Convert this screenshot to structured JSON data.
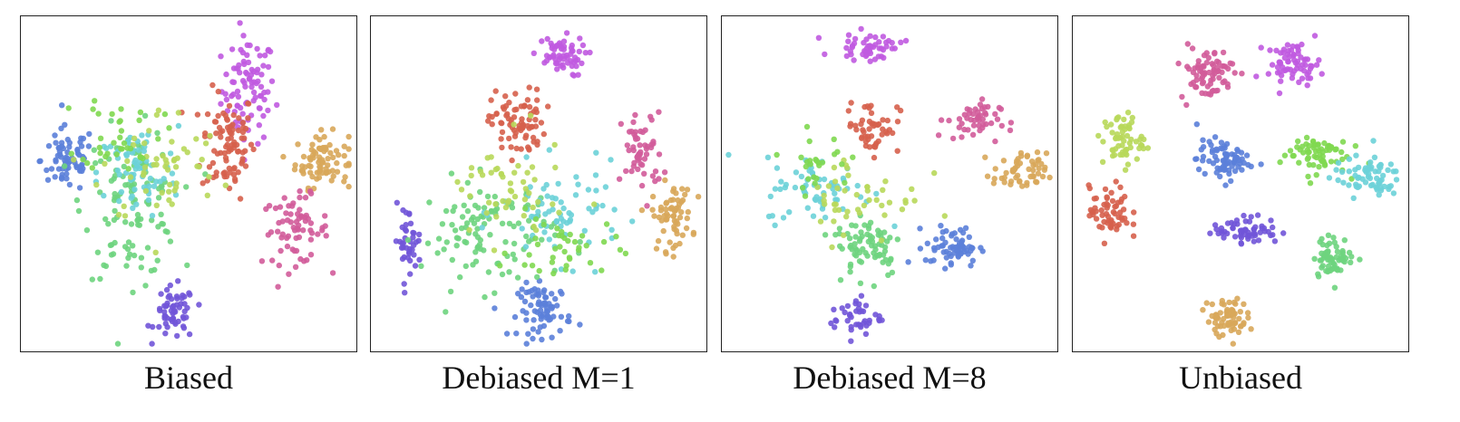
{
  "chart_data": [
    {
      "type": "scatter",
      "title": "Biased",
      "xlim": [
        0,
        100
      ],
      "ylim": [
        0,
        100
      ],
      "grid": false,
      "clusters": [
        {
          "color": "#c05ae0",
          "x": 68,
          "y": 78,
          "sx": 4,
          "sy": 8,
          "n": 90
        },
        {
          "color": "#d6604d",
          "x": 62,
          "y": 62,
          "sx": 4,
          "sy": 8,
          "n": 90
        },
        {
          "color": "#d8a75a",
          "x": 90,
          "y": 57,
          "sx": 4,
          "sy": 4,
          "n": 80
        },
        {
          "color": "#d25c9a",
          "x": 82,
          "y": 36,
          "sx": 5,
          "sy": 5,
          "n": 70
        },
        {
          "color": "#5b7fd9",
          "x": 14,
          "y": 57,
          "sx": 4,
          "sy": 5,
          "n": 70
        },
        {
          "color": "#7155d8",
          "x": 46,
          "y": 11,
          "sx": 3,
          "sy": 4,
          "n": 60
        },
        {
          "color": "#6ed47e",
          "x": 33,
          "y": 44,
          "sx": 7,
          "sy": 11,
          "n": 110
        },
        {
          "color": "#6cd1d8",
          "x": 35,
          "y": 53,
          "sx": 6,
          "sy": 7,
          "n": 70
        },
        {
          "color": "#b8d85a",
          "x": 42,
          "y": 55,
          "sx": 9,
          "sy": 9,
          "n": 55
        },
        {
          "color": "#7fd850",
          "x": 30,
          "y": 66,
          "sx": 6,
          "sy": 6,
          "n": 35
        }
      ]
    },
    {
      "type": "scatter",
      "title": "Debiased M=1",
      "xlim": [
        0,
        100
      ],
      "ylim": [
        0,
        100
      ],
      "grid": false,
      "clusters": [
        {
          "color": "#c05ae0",
          "x": 56,
          "y": 88,
          "sx": 4,
          "sy": 3,
          "n": 60
        },
        {
          "color": "#d6604d",
          "x": 44,
          "y": 68,
          "sx": 4,
          "sy": 5,
          "n": 80
        },
        {
          "color": "#d25c9a",
          "x": 81,
          "y": 59,
          "sx": 3,
          "sy": 6,
          "n": 55
        },
        {
          "color": "#d8a75a",
          "x": 90,
          "y": 40,
          "sx": 3,
          "sy": 5,
          "n": 65
        },
        {
          "color": "#7155d8",
          "x": 11,
          "y": 33,
          "sx": 2,
          "sy": 5,
          "n": 40
        },
        {
          "color": "#5b7fd9",
          "x": 52,
          "y": 12,
          "sx": 4,
          "sy": 4,
          "n": 75
        },
        {
          "color": "#6ed47e",
          "x": 35,
          "y": 35,
          "sx": 10,
          "sy": 8,
          "n": 110
        },
        {
          "color": "#6cd1d8",
          "x": 57,
          "y": 41,
          "sx": 9,
          "sy": 7,
          "n": 70
        },
        {
          "color": "#b8d85a",
          "x": 40,
          "y": 47,
          "sx": 9,
          "sy": 8,
          "n": 50
        },
        {
          "color": "#7fd850",
          "x": 58,
          "y": 30,
          "sx": 8,
          "sy": 5,
          "n": 40
        }
      ]
    },
    {
      "type": "scatter",
      "title": "Debiased M=8",
      "xlim": [
        0,
        100
      ],
      "ylim": [
        0,
        100
      ],
      "grid": false,
      "clusters": [
        {
          "color": "#c05ae0",
          "x": 44,
          "y": 91,
          "sx": 5,
          "sy": 2,
          "n": 50
        },
        {
          "color": "#d6604d",
          "x": 45,
          "y": 67,
          "sx": 4,
          "sy": 4,
          "n": 50
        },
        {
          "color": "#d25c9a",
          "x": 75,
          "y": 69,
          "sx": 4,
          "sy": 3,
          "n": 50
        },
        {
          "color": "#d8a75a",
          "x": 89,
          "y": 53,
          "sx": 4,
          "sy": 3,
          "n": 55
        },
        {
          "color": "#5b7fd9",
          "x": 69,
          "y": 31,
          "sx": 4,
          "sy": 3,
          "n": 65
        },
        {
          "color": "#7155d8",
          "x": 40,
          "y": 10,
          "sx": 4,
          "sy": 3,
          "n": 40
        },
        {
          "color": "#6ed47e",
          "x": 44,
          "y": 32,
          "sx": 5,
          "sy": 5,
          "n": 75
        },
        {
          "color": "#6cd1d8",
          "x": 29,
          "y": 48,
          "sx": 8,
          "sy": 5,
          "n": 65
        },
        {
          "color": "#b8d85a",
          "x": 42,
          "y": 46,
          "sx": 9,
          "sy": 7,
          "n": 45
        },
        {
          "color": "#7fd850",
          "x": 28,
          "y": 57,
          "sx": 5,
          "sy": 4,
          "n": 25
        }
      ]
    },
    {
      "type": "scatter",
      "title": "Unbiased",
      "xlim": [
        0,
        100
      ],
      "ylim": [
        0,
        100
      ],
      "grid": false,
      "clusters": [
        {
          "color": "#d25c9a",
          "x": 40,
          "y": 83,
          "sx": 4,
          "sy": 4,
          "n": 75
        },
        {
          "color": "#c05ae0",
          "x": 66,
          "y": 86,
          "sx": 4,
          "sy": 3,
          "n": 70
        },
        {
          "color": "#b8d85a",
          "x": 15,
          "y": 63,
          "sx": 3,
          "sy": 4,
          "n": 60
        },
        {
          "color": "#5b7fd9",
          "x": 45,
          "y": 57,
          "sx": 4,
          "sy": 3,
          "n": 75
        },
        {
          "color": "#7fd850",
          "x": 72,
          "y": 59,
          "sx": 5,
          "sy": 3,
          "n": 65
        },
        {
          "color": "#6cd1d8",
          "x": 88,
          "y": 52,
          "sx": 5,
          "sy": 3,
          "n": 65
        },
        {
          "color": "#d6604d",
          "x": 11,
          "y": 41,
          "sx": 3,
          "sy": 4,
          "n": 60
        },
        {
          "color": "#7155d8",
          "x": 52,
          "y": 36,
          "sx": 5,
          "sy": 2,
          "n": 60
        },
        {
          "color": "#6ed47e",
          "x": 78,
          "y": 28,
          "sx": 3,
          "sy": 3,
          "n": 65
        },
        {
          "color": "#d8a75a",
          "x": 46,
          "y": 10,
          "sx": 3,
          "sy": 3,
          "n": 65
        }
      ]
    }
  ]
}
